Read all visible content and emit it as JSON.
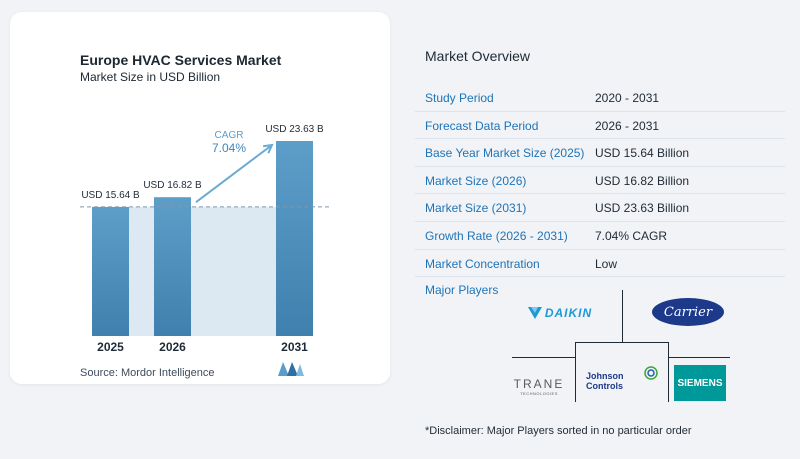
{
  "chart": {
    "title": "Europe HVAC Services Market",
    "subtitle": "Market Size in USD Billion",
    "source": "Source:  Mordor Intelligence",
    "cagr_label": "CAGR",
    "cagr_value": "7.04%"
  },
  "chart_data": {
    "type": "bar",
    "title": "Europe HVAC Services Market",
    "subtitle": "Market Size in USD Billion",
    "categories": [
      "2025",
      "2026",
      "2031"
    ],
    "values": [
      15.64,
      16.82,
      23.63
    ],
    "data_labels": [
      "USD 15.64 B",
      "USD 16.82 B",
      "USD 23.63 B"
    ],
    "ylim": [
      0,
      23.63
    ],
    "annotation": "CAGR 7.04%",
    "grid": false,
    "colors": {
      "bar_top": "#5b9cc7",
      "bar_bottom": "#3d7fae",
      "shade": "#dce8f2",
      "arrow": "#6aaad4"
    }
  },
  "overview": {
    "title": "Market Overview",
    "rows": [
      {
        "label": "Study Period",
        "value": "2020 - 2031"
      },
      {
        "label": "Forecast Data Period",
        "value": "2026 - 2031"
      },
      {
        "label": "Base Year Market Size (2025)",
        "value": "USD 15.64 Billion"
      },
      {
        "label": "Market Size (2026)",
        "value": "USD 16.82 Billion"
      },
      {
        "label": "Market Size (2031)",
        "value": "USD 23.63 Billion"
      },
      {
        "label": "Growth Rate (2026 - 2031)",
        "value": "7.04% CAGR"
      },
      {
        "label": "Market Concentration",
        "value": "Low"
      }
    ]
  },
  "players": {
    "title": "Major Players",
    "logos": [
      "DAIKIN",
      "Carrier",
      "TRANE",
      "TECHNOLOGIES",
      "Johnson",
      "Controls",
      "SIEMENS"
    ]
  },
  "disclaimer": "*Disclaimer: Major Players sorted in no particular order",
  "colors": {
    "accent": "#1f74b8",
    "daikin": "#1b9ad6",
    "carrier": "#1d3a8a",
    "siemens": "#009999"
  }
}
